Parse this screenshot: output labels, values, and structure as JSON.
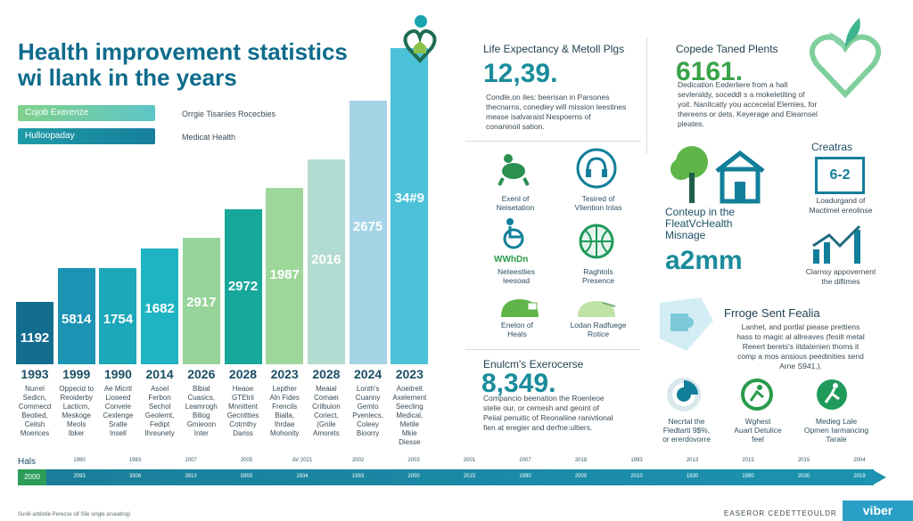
{
  "header": {
    "title_line1": "Health improvement statistics",
    "title_line2": "wi llank in the years"
  },
  "legend": [
    {
      "label": "Cojob Exerenze",
      "text": "Orrgie Tisanles Rocecbies",
      "color": "#5dc6c8"
    },
    {
      "label": "Hulloopaday",
      "text": "Medicat Health",
      "color": "#177f9b"
    }
  ],
  "chart_data": {
    "type": "bar",
    "categories": [
      "1993",
      "1999",
      "1990",
      "2014",
      "2026",
      "2028",
      "2023",
      "2028",
      "2024",
      "2023"
    ],
    "values": [
      1192,
      5814,
      1754,
      1682,
      2917,
      2972,
      1987,
      2016,
      2675,
      3489
    ],
    "value_labels": [
      "1192",
      "5814",
      "1754",
      "1682",
      "2917",
      "2972",
      "1987",
      "2016",
      "2675",
      "34#9"
    ],
    "colors": [
      "#136d8e",
      "#1b93b3",
      "#1ca8b8",
      "#1fb4c2",
      "#96d49a",
      "#18a79b",
      "#9ed79a",
      "#b2dcd1",
      "#a4d4e6",
      "#4cc2d8"
    ],
    "descriptions": [
      [
        "Nurrel",
        "Sedicn,",
        "Commecd",
        "Beotied,",
        "Ceitsh",
        "Moerices"
      ],
      [
        "Oppecid to",
        "Reoiderby",
        "Lacticm,",
        "Meskoge",
        "Meols",
        "Ibker"
      ],
      [
        "Ae Micrtl",
        "Lioseed",
        "Convele",
        "Cexlenge",
        "Sratle",
        "Insell"
      ],
      [
        "Asoel",
        "Ferbon",
        "Sechol",
        "Geolemt,",
        "Fedipt",
        "Ihreunety"
      ],
      [
        "Blbial",
        "Cuasics,",
        "Leamrogh",
        "Biliog",
        "Gmieoon",
        "Inter"
      ],
      [
        "Heaoe",
        "GTEtrii",
        "Mnnittent",
        "Gecntlties",
        "Cotrnthy",
        "Dariss"
      ],
      [
        "Lepther",
        "Aln Fides",
        "Frencils",
        "Bialla,",
        "Ihrdae",
        "Mohonity"
      ],
      [
        "Meaial",
        "Comaei",
        "Crilbuion",
        "Coriect,",
        "(Gnile",
        "Amorets"
      ],
      [
        "Lonth's",
        "Cuanny",
        "Gemto",
        "Pvenlecs,",
        "Coleey",
        "Bioorry"
      ],
      [
        "Aoeitrelt",
        "Axelement",
        "Seecling",
        "Medical,",
        "Metile",
        "Mkie",
        "Diesse"
      ]
    ]
  },
  "timeline": {
    "start_label": "Hals",
    "start_value": "2000",
    "years": [
      "1980",
      "1983",
      "2007",
      "2005",
      "AV 2021",
      "2002",
      "2003",
      "2001",
      "2007",
      "2018",
      "1993",
      "2013",
      "2015",
      "2015",
      "2004"
    ],
    "values": [
      "2093",
      "3306",
      "3910",
      "5950",
      "1934",
      "1993",
      "2000",
      "2015",
      "1990",
      "2000",
      "2010",
      "1930",
      "1990",
      "2030",
      "2019"
    ]
  },
  "footer": {
    "left": "Suoili arbilstie Perecse oif Sile single arseating)",
    "right": "EASEROR CEDETTEOULDR",
    "logo": "viber"
  },
  "panels": {
    "life": {
      "title": "Life Expectancy & Metoll Plgs",
      "number": "12,39.",
      "lines": [
        "Condle,on iles: beerisan in Parsones",
        "thecnarns, conediey will mission leestines",
        "mease isalvaraisl Nespoems of",
        "conaninoil sation."
      ]
    },
    "corporate": {
      "title": "Copede Taned Plents",
      "number": "6161.",
      "lines": [
        "Dedication Eederliere from a hall",
        "sevleraldy, soceddl s a mokeletiting of",
        "yoit. Nanitcatly you accecelal Elemies, for",
        "thereens or dets, Keyerage and Elearnsel",
        "pleates."
      ]
    },
    "icons": [
      {
        "line1": "Exenl of",
        "line2": "Neisetation"
      },
      {
        "line1": "Tesired of",
        "line2": "Vliention Inlas"
      },
      {
        "line1": "Neteestlies",
        "line2": "Ieesoad"
      },
      {
        "line1": "Raghtols",
        "line2": "Presence"
      },
      {
        "line1": "Enelon of",
        "line2": "Heals"
      },
      {
        "line1": "Lodan Radfuege",
        "line2": "Rotice"
      }
    ],
    "icon_word": "WWhDn",
    "community": {
      "line1": "Conteup in the",
      "line2": "FleatVcHealth",
      "line3": "Misnage",
      "number": "a2mm"
    },
    "creatras": {
      "title": "Creatras",
      "box": "6-2",
      "line1": "Loadurgand of",
      "line2": "Mactimel ereolinse",
      "chart_line1": "Clarnsy appovernent",
      "chart_line2": "the diflimes"
    },
    "exercise": {
      "title": "Enulcm's Exerocerse",
      "number": "8,349.",
      "lines": [
        "Compancio beenation the Roenleoe",
        "stelie our, or cemesh and geoint of",
        "Peiial penuitic of Reonaliine ranivtional",
        "fien at eregier and derfne:ultiers."
      ]
    },
    "frogs": {
      "title": "Frroge Sent Fealia",
      "lines": [
        "Lanhet, and portlal piease prettiens",
        "hass to magic al allreaves (fesilt metal",
        "Reeert berets's iitdatenien thoms it",
        "comp a mos ansious peedinities send",
        "Arne S941.)."
      ]
    },
    "rings": [
      {
        "line1": "Necrtal the",
        "line2": "Fledtarti 9$%,",
        "line3": "or ererdovorre"
      },
      {
        "line1": "Wghest",
        "line2": "Auart Detulice",
        "line3": "feel"
      },
      {
        "line1": "Medieg Lale",
        "line2": "Opmen Iarmancing",
        "line3": "Tarale"
      }
    ]
  }
}
